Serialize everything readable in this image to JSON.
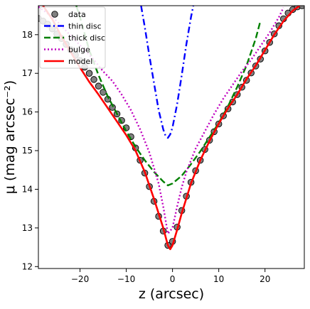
{
  "chart_data": {
    "type": "line",
    "xlabel": "z (arcsec)",
    "ylabel": "μ (mag arcsec⁻²)",
    "xlim": [
      -29,
      28.5
    ],
    "ylim": [
      18.75,
      11.95
    ],
    "y_inverted": true,
    "grid": false,
    "legend_position": "top-left",
    "x_ticks": [
      -20,
      -10,
      0,
      10,
      20
    ],
    "y_ticks": [
      12,
      13,
      14,
      15,
      16,
      17,
      18
    ],
    "series": [
      {
        "name": "data",
        "kind": "points",
        "color": "#808080",
        "edgecolor": "#000000",
        "x": [
          -29,
          -28,
          -27,
          -26,
          -25,
          -24,
          -23,
          -22,
          -21,
          -20,
          -19,
          -18,
          -17,
          -16,
          -15,
          -14,
          -13,
          -12,
          -11,
          -10,
          -9,
          -8,
          -7,
          -6,
          -5,
          -4,
          -3,
          -2,
          -1,
          0,
          1,
          2,
          3,
          4,
          5,
          6,
          7,
          8,
          9,
          10,
          11,
          12,
          13,
          14,
          15,
          16,
          17,
          18,
          19,
          20,
          21,
          22,
          23,
          24,
          25,
          26,
          27,
          28
        ],
        "y": [
          18.42,
          18.35,
          18.27,
          18.15,
          18.02,
          17.9,
          17.75,
          17.61,
          17.47,
          17.33,
          17.16,
          17.0,
          16.84,
          16.67,
          16.51,
          16.33,
          16.12,
          15.95,
          15.78,
          15.59,
          15.36,
          15.07,
          14.75,
          14.42,
          14.07,
          13.69,
          13.3,
          12.92,
          12.55,
          12.65,
          13.02,
          13.45,
          13.82,
          14.18,
          14.48,
          14.75,
          15.03,
          15.27,
          15.49,
          15.69,
          15.9,
          16.08,
          16.26,
          16.45,
          16.64,
          16.82,
          17.01,
          17.19,
          17.37,
          17.58,
          17.8,
          18.02,
          18.23,
          18.41,
          18.56,
          18.65,
          18.72,
          18.75
        ]
      },
      {
        "name": "thin disc",
        "kind": "line",
        "color": "#0000ff",
        "dash": "dashdot",
        "x": [
          -6.8,
          -6,
          -5,
          -4,
          -3,
          -2,
          -1.5,
          -1,
          -0.5,
          0,
          1,
          2,
          3,
          4,
          4.5
        ],
        "y": [
          18.75,
          18.2,
          17.45,
          16.75,
          16.05,
          15.55,
          15.38,
          15.33,
          15.42,
          15.6,
          16.2,
          16.95,
          17.75,
          18.45,
          18.75
        ]
      },
      {
        "name": "thick disc",
        "kind": "line",
        "color": "#008000",
        "dash": "dashed",
        "x": [
          -20.8,
          -20,
          -18,
          -16,
          -14,
          -12,
          -10,
          -8,
          -6,
          -4,
          -2,
          -1,
          0,
          2,
          4,
          6,
          8,
          10,
          12,
          14,
          16,
          18,
          19
        ],
        "y": [
          18.75,
          18.45,
          17.6,
          16.95,
          16.4,
          15.95,
          15.5,
          15.1,
          14.75,
          14.45,
          14.2,
          14.1,
          14.15,
          14.35,
          14.65,
          14.98,
          15.35,
          15.72,
          16.15,
          16.65,
          17.2,
          17.9,
          18.35
        ]
      },
      {
        "name": "bulge",
        "kind": "line",
        "color": "#bf00bf",
        "dash": "dotted",
        "x": [
          -29,
          -27,
          -25,
          -23,
          -21,
          -19,
          -17,
          -15,
          -13,
          -11,
          -9,
          -7,
          -5,
          -3,
          -2,
          -1,
          0,
          1,
          2,
          3,
          5,
          7,
          9,
          11,
          13,
          15,
          17,
          19,
          21,
          23,
          24
        ],
        "y": [
          18.72,
          18.55,
          18.35,
          18.1,
          17.85,
          17.6,
          17.35,
          17.05,
          16.8,
          16.45,
          16.05,
          15.55,
          14.95,
          14.15,
          13.55,
          12.85,
          13.0,
          13.55,
          14.05,
          14.45,
          15.05,
          15.5,
          15.95,
          16.35,
          16.7,
          17.05,
          17.35,
          17.7,
          18.05,
          18.45,
          18.7
        ]
      },
      {
        "name": "model",
        "kind": "line",
        "color": "#ff0000",
        "dash": "solid",
        "x": [
          -28,
          -26,
          -24,
          -22,
          -20,
          -18,
          -16,
          -14,
          -12,
          -10,
          -8,
          -6,
          -4,
          -2,
          -1,
          -0.5,
          0,
          1,
          2,
          4,
          6,
          8,
          10,
          12,
          14,
          16,
          18,
          20,
          22,
          24,
          26,
          27.5
        ],
        "y": [
          18.75,
          18.4,
          17.95,
          17.55,
          17.15,
          16.78,
          16.45,
          16.1,
          15.75,
          15.4,
          15.0,
          14.45,
          13.75,
          13.0,
          12.55,
          12.45,
          12.55,
          12.95,
          13.38,
          14.15,
          14.75,
          15.25,
          15.7,
          16.1,
          16.45,
          16.85,
          17.2,
          17.6,
          18.0,
          18.35,
          18.62,
          18.75
        ]
      }
    ]
  }
}
